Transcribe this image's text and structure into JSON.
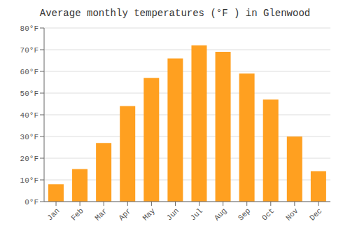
{
  "chart_data": {
    "type": "bar",
    "title": "Average monthly temperatures (°F ) in Glenwood",
    "categories": [
      "Jan",
      "Feb",
      "Mar",
      "Apr",
      "May",
      "Jun",
      "Jul",
      "Aug",
      "Sep",
      "Oct",
      "Nov",
      "Dec"
    ],
    "values": [
      8,
      15,
      27,
      44,
      57,
      66,
      72,
      69,
      59,
      47,
      30,
      14
    ],
    "color": "#FFA020",
    "ylim": [
      0,
      80
    ],
    "yticks": [
      {
        "value": 0,
        "label": "0°F"
      },
      {
        "value": 10,
        "label": "10°F"
      },
      {
        "value": 20,
        "label": "20°F"
      },
      {
        "value": 30,
        "label": "30°F"
      },
      {
        "value": 40,
        "label": "40°F"
      },
      {
        "value": 50,
        "label": "50°F"
      },
      {
        "value": 60,
        "label": "60°F"
      },
      {
        "value": 70,
        "label": "70°F"
      },
      {
        "value": 80,
        "label": "80°F"
      }
    ],
    "grid": true
  }
}
